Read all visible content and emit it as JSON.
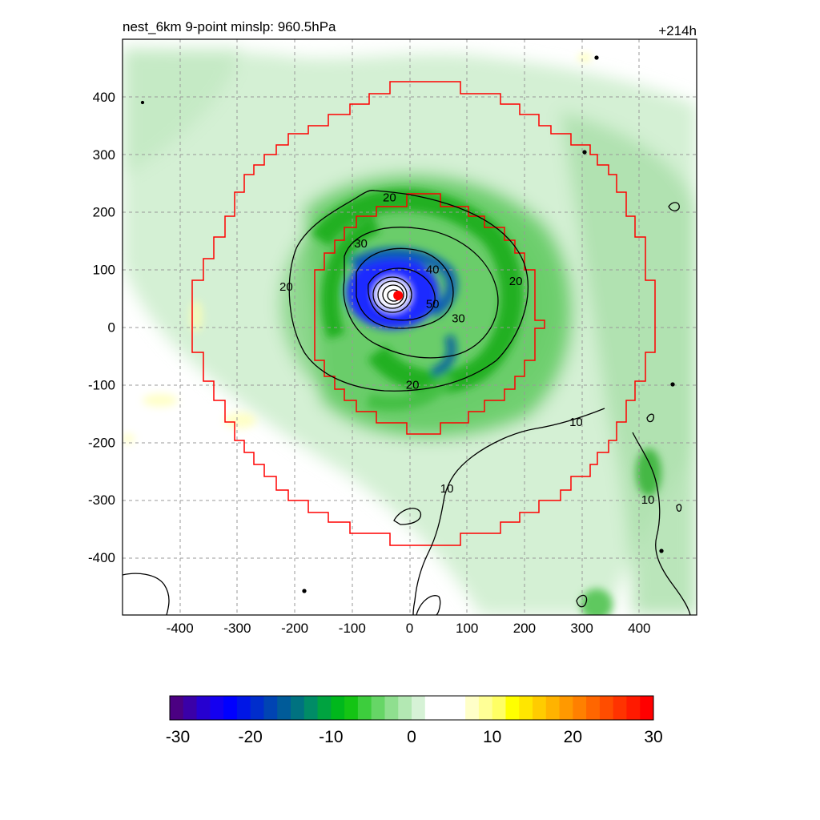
{
  "title": {
    "left": "nest_6km  9-point minslp: 960.5hPa",
    "right": "+214h"
  },
  "chart_data": [
    {
      "type": "heatmap",
      "xlim": [
        -500,
        500
      ],
      "ylim": [
        -500,
        500
      ],
      "xticks": [
        -400,
        -300,
        -200,
        -100,
        0,
        100,
        200,
        300,
        400
      ],
      "yticks": [
        400,
        300,
        200,
        100,
        0,
        -100,
        -200,
        -300,
        -400
      ],
      "grid": true,
      "grid_style": "dashed",
      "storm_center": [
        -20,
        55
      ],
      "contour_levels": [
        10,
        20,
        30,
        40,
        50
      ],
      "contour_labels": [
        {
          "text": "20",
          "x": -35,
          "y": 225
        },
        {
          "text": "30",
          "x": -85,
          "y": 145
        },
        {
          "text": "40",
          "x": 40,
          "y": 100
        },
        {
          "text": "50",
          "x": 40,
          "y": 40
        },
        {
          "text": "20",
          "x": -215,
          "y": 70
        },
        {
          "text": "20",
          "x": 185,
          "y": 80
        },
        {
          "text": "30",
          "x": 85,
          "y": 15
        },
        {
          "text": "20",
          "x": 5,
          "y": -100
        },
        {
          "text": "10",
          "x": 290,
          "y": -165
        },
        {
          "text": "10",
          "x": 65,
          "y": -280
        },
        {
          "text": "10",
          "x": 415,
          "y": -300
        }
      ],
      "inner_box_radius_km": 150,
      "outer_box_radius_km": 380,
      "colors": {
        "contour": "#000000",
        "box": "#ff0000",
        "center_marker": "#ff0000"
      }
    },
    {
      "type": "colorbar",
      "range": [
        -30,
        30
      ],
      "tick_labels": [
        "-30",
        "-20",
        "-10",
        "0",
        "10",
        "20",
        "30"
      ],
      "colors": [
        "#4b0082",
        "#3a00a8",
        "#2600d0",
        "#1400f0",
        "#0000ff",
        "#0016e6",
        "#002dcc",
        "#0044b3",
        "#005b99",
        "#007280",
        "#008c66",
        "#00a340",
        "#00b81c",
        "#14c414",
        "#3dcd3d",
        "#66d666",
        "#8fdf8f",
        "#b3e8b3",
        "#d6f2d6",
        "#ffffff",
        "#ffffff",
        "#ffffff",
        "#ffffc8",
        "#ffff96",
        "#ffff64",
        "#ffff00",
        "#ffe600",
        "#ffcc00",
        "#ffb300",
        "#ff9900",
        "#ff8000",
        "#ff6600",
        "#ff4d00",
        "#ff3300",
        "#ff1a00",
        "#ff0000"
      ]
    }
  ]
}
